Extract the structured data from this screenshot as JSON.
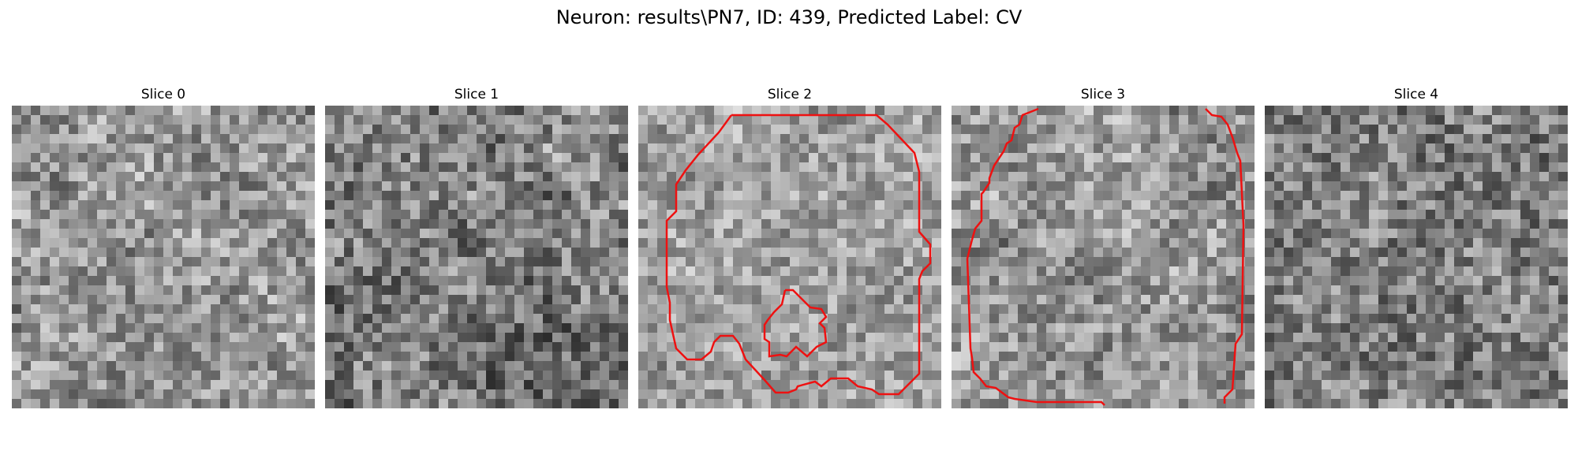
{
  "figure": {
    "title": "Neuron: results\\PN7, ID: 439, Predicted Label: CV"
  },
  "panels": [
    {
      "title": "Slice 0",
      "has_contour": false
    },
    {
      "title": "Slice 1",
      "has_contour": false
    },
    {
      "title": "Slice 2",
      "has_contour": true
    },
    {
      "title": "Slice 3",
      "has_contour": true
    },
    {
      "title": "Slice 4",
      "has_contour": false
    }
  ],
  "contour_color": "#ee1111"
}
